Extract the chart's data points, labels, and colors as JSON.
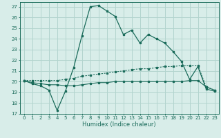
{
  "xlabel": "Humidex (Indice chaleur)",
  "bg_color": "#d8ede9",
  "grid_color": "#b2d4ce",
  "line_color": "#1a6b5a",
  "xlim": [
    -0.5,
    23.5
  ],
  "ylim": [
    17,
    27.4
  ],
  "xticks": [
    0,
    1,
    2,
    3,
    4,
    5,
    6,
    7,
    8,
    9,
    10,
    11,
    12,
    13,
    14,
    15,
    16,
    17,
    18,
    19,
    20,
    21,
    22,
    23
  ],
  "yticks": [
    17,
    18,
    19,
    20,
    21,
    22,
    23,
    24,
    25,
    26,
    27
  ],
  "line1_x": [
    0,
    1,
    2,
    3,
    4,
    5,
    6,
    7,
    8,
    9,
    10,
    11,
    12,
    13,
    14,
    15,
    16,
    17,
    18,
    19,
    20,
    21,
    22,
    23
  ],
  "line1_y": [
    20.1,
    19.8,
    19.6,
    19.2,
    17.3,
    19.1,
    21.3,
    24.3,
    27.0,
    27.1,
    26.6,
    26.1,
    24.4,
    24.8,
    23.6,
    24.4,
    24.0,
    23.6,
    22.8,
    21.9,
    20.2,
    21.4,
    19.3,
    19.1
  ],
  "line2_x": [
    0,
    1,
    2,
    3,
    4,
    5,
    6,
    7,
    8,
    9,
    10,
    11,
    12,
    13,
    14,
    15,
    16,
    17,
    18,
    19,
    20,
    21,
    22,
    23
  ],
  "line2_y": [
    20.1,
    19.9,
    19.8,
    19.7,
    19.7,
    19.6,
    19.6,
    19.7,
    19.8,
    19.9,
    19.9,
    20.0,
    20.0,
    20.0,
    20.0,
    20.0,
    20.0,
    20.0,
    20.0,
    20.0,
    20.1,
    20.1,
    19.5,
    19.2
  ],
  "line3_x": [
    0,
    1,
    2,
    3,
    4,
    5,
    6,
    7,
    8,
    9,
    10,
    11,
    12,
    13,
    14,
    15,
    16,
    17,
    18,
    19,
    20,
    21,
    22,
    23
  ],
  "line3_y": [
    20.1,
    20.1,
    20.1,
    20.1,
    20.1,
    20.2,
    20.3,
    20.5,
    20.6,
    20.7,
    20.8,
    20.9,
    21.0,
    21.1,
    21.2,
    21.2,
    21.3,
    21.4,
    21.4,
    21.5,
    21.5,
    21.5,
    19.5,
    19.2
  ]
}
